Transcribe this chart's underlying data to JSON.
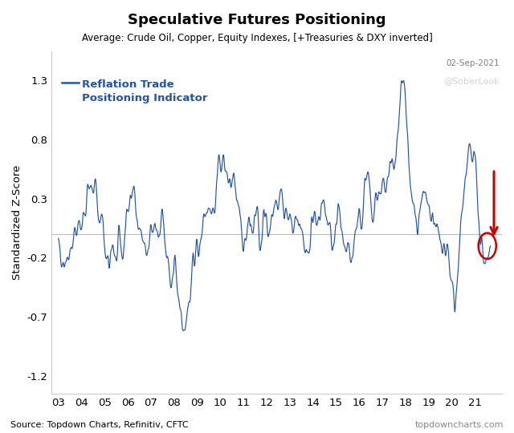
{
  "title": "Speculative Futures Positioning",
  "subtitle": "Average: Crude Oil, Copper, Equity Indexes, [+Treasuries & DXY inverted]",
  "date_label": "02-Sep-2021",
  "ylabel": "Standardized Z-Score",
  "legend_label": "Reflation Trade\nPositioning Indicator",
  "source_left": "Source: Topdown Charts, Refinitiv, CFTC",
  "source_right": "topdowncharts.com",
  "soberlook": "@SoberLook",
  "yticks": [
    1.3,
    0.8,
    0.3,
    -0.2,
    -0.7,
    -1.2
  ],
  "xtick_labels": [
    "03",
    "04",
    "05",
    "06",
    "07",
    "08",
    "09",
    "10",
    "11",
    "12",
    "13",
    "14",
    "15",
    "16",
    "17",
    "18",
    "19",
    "20",
    "21"
  ],
  "line_color": "#2255aa",
  "arrow_color": "#cc0000",
  "circle_color": "#cc0000",
  "background_color": "#ffffff",
  "figsize": [
    6.4,
    5.4
  ],
  "dpi": 100
}
